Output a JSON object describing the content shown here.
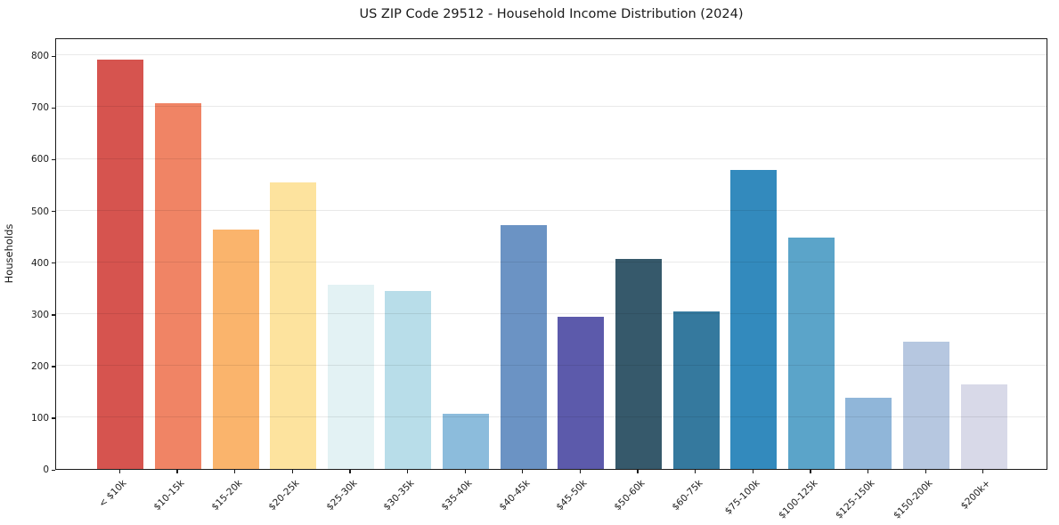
{
  "page": {
    "title": "US ZIP Code 29512 - Household Income Distribution (2024)"
  },
  "chart_data": {
    "type": "bar",
    "title": "US ZIP Code 29512 - Household Income Distribution (2024)",
    "xlabel": "",
    "ylabel": "Households",
    "ylim": [
      0,
      835
    ],
    "yticks": [
      0,
      100,
      200,
      300,
      400,
      500,
      600,
      700,
      800
    ],
    "grid": "horizontal-only",
    "legend": "none",
    "categories": [
      "< $10k",
      "$10-15k",
      "$15-20k",
      "$20-25k",
      "$25-30k",
      "$30-35k",
      "$35-40k",
      "$40-45k",
      "$45-50k",
      "$50-60k",
      "$60-75k",
      "$75-100k",
      "$100-125k",
      "$125-150k",
      "$150-200k",
      "$200k+"
    ],
    "values": [
      792,
      708,
      464,
      554,
      356,
      344,
      107,
      472,
      295,
      406,
      305,
      579,
      447,
      138,
      247,
      164
    ],
    "bar_colors": [
      "#d6544f",
      "#f08465",
      "#fab46c",
      "#fde39e",
      "#e3f2f4",
      "#b8dde9",
      "#8cbcdc",
      "#6b93c4",
      "#5c5aab",
      "#36596b",
      "#35799e",
      "#338abd",
      "#5ba4c9",
      "#90b6d9",
      "#b6c7e0",
      "#d8d9e8"
    ],
    "axis_color": "#1a1a1a",
    "gridline_color": "#e8e8e8",
    "background_color": "#ffffff"
  }
}
